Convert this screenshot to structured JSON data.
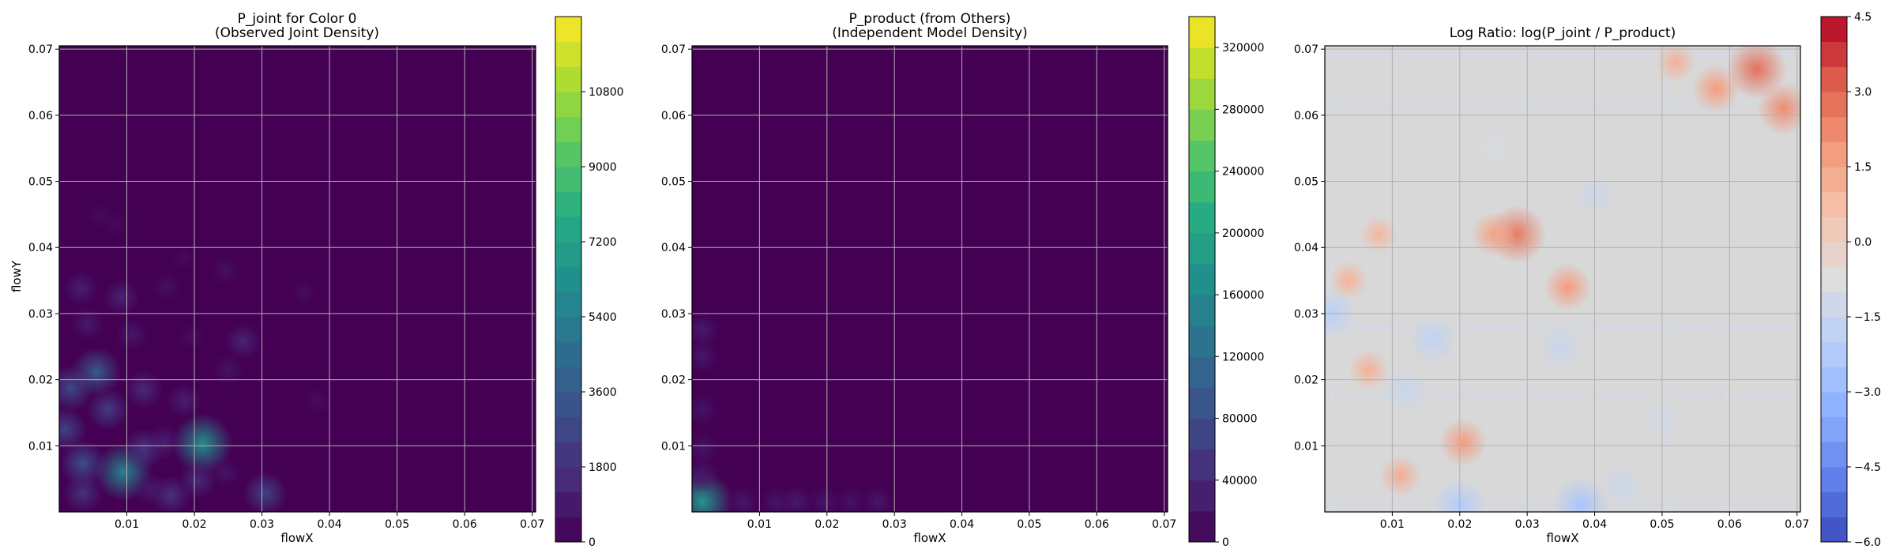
{
  "chart_data": [
    {
      "type": "heatmap",
      "title_line1": "P_joint for Color 0",
      "title_line2": "(Observed Joint Density)",
      "xlabel": "flowX",
      "ylabel": "flowY",
      "xlim": [
        0.0,
        0.0705
      ],
      "ylim": [
        0.0,
        0.0705
      ],
      "xticks": [
        0.01,
        0.02,
        0.03,
        0.04,
        0.05,
        0.06,
        0.07
      ],
      "xtick_labels": [
        "0.01",
        "0.02",
        "0.03",
        "0.04",
        "0.05",
        "0.06",
        "0.07"
      ],
      "yticks": [
        0.01,
        0.02,
        0.03,
        0.04,
        0.05,
        0.06,
        0.07
      ],
      "ytick_labels": [
        "0.01",
        "0.02",
        "0.03",
        "0.04",
        "0.05",
        "0.06",
        "0.07"
      ],
      "grid": true,
      "colormap": "viridis",
      "background_color": "#440154",
      "colorbar": {
        "min": 0,
        "max": 12600,
        "levels": 21,
        "ticks": [
          0,
          1800,
          3600,
          5400,
          7200,
          9000,
          10800
        ],
        "tick_labels": [
          "0",
          "1800",
          "3600",
          "5400",
          "7200",
          "9000",
          "10800"
        ]
      },
      "hotspots": [
        {
          "x": 0.0095,
          "y": 0.006,
          "value": 5600
        },
        {
          "x": 0.0212,
          "y": 0.0103,
          "value": 6200
        },
        {
          "x": 0.0055,
          "y": 0.0212,
          "value": 3600
        },
        {
          "x": 0.0035,
          "y": 0.0073,
          "value": 3000
        },
        {
          "x": 0.0017,
          "y": 0.0187,
          "value": 2800
        },
        {
          "x": 0.0008,
          "y": 0.0125,
          "value": 2500
        },
        {
          "x": 0.0305,
          "y": 0.0028,
          "value": 2500
        },
        {
          "x": 0.0072,
          "y": 0.0155,
          "value": 2200
        },
        {
          "x": 0.0125,
          "y": 0.0095,
          "value": 2000
        },
        {
          "x": 0.0165,
          "y": 0.0025,
          "value": 1800
        },
        {
          "x": 0.0035,
          "y": 0.0028,
          "value": 1800
        },
        {
          "x": 0.0125,
          "y": 0.0185,
          "value": 1500
        },
        {
          "x": 0.0272,
          "y": 0.0258,
          "value": 1300
        },
        {
          "x": 0.0092,
          "y": 0.0325,
          "value": 1200
        },
        {
          "x": 0.0032,
          "y": 0.0338,
          "value": 1100
        },
        {
          "x": 0.0185,
          "y": 0.0168,
          "value": 1100
        },
        {
          "x": 0.0155,
          "y": 0.0105,
          "value": 1100
        },
        {
          "x": 0.0108,
          "y": 0.0268,
          "value": 800
        },
        {
          "x": 0.025,
          "y": 0.0215,
          "value": 700
        },
        {
          "x": 0.0245,
          "y": 0.006,
          "value": 700
        },
        {
          "x": 0.0245,
          "y": 0.0365,
          "value": 500
        },
        {
          "x": 0.0362,
          "y": 0.0332,
          "value": 400
        },
        {
          "x": 0.0382,
          "y": 0.0168,
          "value": 400
        },
        {
          "x": 0.0158,
          "y": 0.034,
          "value": 500
        },
        {
          "x": 0.0042,
          "y": 0.0285,
          "value": 900
        },
        {
          "x": 0.006,
          "y": 0.0448,
          "value": 350
        },
        {
          "x": 0.0085,
          "y": 0.0435,
          "value": 300
        },
        {
          "x": 0.0185,
          "y": 0.0385,
          "value": 300
        },
        {
          "x": 0.0195,
          "y": 0.0265,
          "value": 400
        },
        {
          "x": 0.0205,
          "y": 0.0048,
          "value": 1500
        },
        {
          "x": 0.0135,
          "y": 0.0035,
          "value": 900
        }
      ]
    },
    {
      "type": "heatmap",
      "title_line1": "P_product (from Others)",
      "title_line2": "(Independent Model Density)",
      "xlabel": "flowX",
      "ylabel": "",
      "xlim": [
        0.0,
        0.0705
      ],
      "ylim": [
        0.0,
        0.0705
      ],
      "xticks": [
        0.01,
        0.02,
        0.03,
        0.04,
        0.05,
        0.06,
        0.07
      ],
      "xtick_labels": [
        "0.01",
        "0.02",
        "0.03",
        "0.04",
        "0.05",
        "0.06",
        "0.07"
      ],
      "yticks": [
        0.01,
        0.02,
        0.03,
        0.04,
        0.05,
        0.06,
        0.07
      ],
      "ytick_labels": [
        "0.01",
        "0.02",
        "0.03",
        "0.04",
        "0.05",
        "0.06",
        "0.07"
      ],
      "grid": true,
      "colormap": "viridis",
      "background_color": "#440154",
      "colorbar": {
        "min": 0,
        "max": 340000,
        "levels": 17,
        "ticks": [
          0,
          40000,
          80000,
          120000,
          160000,
          200000,
          240000,
          280000,
          320000
        ],
        "tick_labels": [
          "0",
          "40000",
          "80000",
          "120000",
          "160000",
          "200000",
          "240000",
          "280000",
          "320000"
        ]
      },
      "hotspots": [
        {
          "x": 0.0015,
          "y": 0.0015,
          "value": 180000
        },
        {
          "x": 0.0015,
          "y": 0.0055,
          "value": 25000
        },
        {
          "x": 0.0015,
          "y": 0.0095,
          "value": 20000
        },
        {
          "x": 0.0015,
          "y": 0.0155,
          "value": 20000
        },
        {
          "x": 0.0015,
          "y": 0.0235,
          "value": 22000
        },
        {
          "x": 0.0015,
          "y": 0.0275,
          "value": 25000
        },
        {
          "x": 0.0075,
          "y": 0.0015,
          "value": 22000
        },
        {
          "x": 0.0125,
          "y": 0.0015,
          "value": 20000
        },
        {
          "x": 0.0155,
          "y": 0.0015,
          "value": 25000
        },
        {
          "x": 0.0195,
          "y": 0.0015,
          "value": 20000
        },
        {
          "x": 0.0235,
          "y": 0.0015,
          "value": 18000
        },
        {
          "x": 0.0275,
          "y": 0.0015,
          "value": 22000
        }
      ]
    },
    {
      "type": "heatmap",
      "title_line1": "Log Ratio: log(P_joint / P_product)",
      "title_line2": "",
      "xlabel": "flowX",
      "ylabel": "",
      "xlim": [
        0.0,
        0.0705
      ],
      "ylim": [
        0.0,
        0.0705
      ],
      "xticks": [
        0.01,
        0.02,
        0.03,
        0.04,
        0.05,
        0.06,
        0.07
      ],
      "xtick_labels": [
        "0.01",
        "0.02",
        "0.03",
        "0.04",
        "0.05",
        "0.06",
        "0.07"
      ],
      "yticks": [
        0.01,
        0.02,
        0.03,
        0.04,
        0.05,
        0.06,
        0.07
      ],
      "ytick_labels": [
        "0.01",
        "0.02",
        "0.03",
        "0.04",
        "0.05",
        "0.06",
        "0.07"
      ],
      "grid": true,
      "colormap": "coolwarm",
      "background_color": "#d8d8d8",
      "colorbar": {
        "min": -6.0,
        "max": 4.5,
        "levels": 21,
        "ticks": [
          -6.0,
          -4.5,
          -3.0,
          -1.5,
          0.0,
          1.5,
          3.0,
          4.5
        ],
        "tick_labels": [
          "−6.0",
          "−4.5",
          "−3.0",
          "−1.5",
          "0.0",
          "1.5",
          "3.0",
          "4.5"
        ]
      },
      "hotspots": [
        {
          "x": 0.064,
          "y": 0.067,
          "value": 2.8
        },
        {
          "x": 0.058,
          "y": 0.064,
          "value": 1.8
        },
        {
          "x": 0.052,
          "y": 0.068,
          "value": 1.2
        },
        {
          "x": 0.068,
          "y": 0.061,
          "value": 2.2
        },
        {
          "x": 0.0285,
          "y": 0.042,
          "value": 2.6
        },
        {
          "x": 0.025,
          "y": 0.042,
          "value": 1.6
        },
        {
          "x": 0.036,
          "y": 0.034,
          "value": 1.8
        },
        {
          "x": 0.0205,
          "y": 0.0105,
          "value": 1.8
        },
        {
          "x": 0.0112,
          "y": 0.0055,
          "value": 1.3
        },
        {
          "x": 0.0065,
          "y": 0.0215,
          "value": 1.2
        },
        {
          "x": 0.0035,
          "y": 0.035,
          "value": 1.1
        },
        {
          "x": 0.008,
          "y": 0.042,
          "value": 1.0
        },
        {
          "x": 0.012,
          "y": 0.0185,
          "value": -1.5
        },
        {
          "x": 0.016,
          "y": 0.026,
          "value": -1.8
        },
        {
          "x": 0.035,
          "y": 0.025,
          "value": -1.5
        },
        {
          "x": 0.038,
          "y": 0.001,
          "value": -2.5
        },
        {
          "x": 0.02,
          "y": 0.001,
          "value": -2.2
        },
        {
          "x": 0.001,
          "y": 0.03,
          "value": -2.0
        },
        {
          "x": 0.04,
          "y": 0.048,
          "value": -1.4
        },
        {
          "x": 0.05,
          "y": 0.014,
          "value": -1.2
        },
        {
          "x": 0.025,
          "y": 0.055,
          "value": -1.0
        },
        {
          "x": 0.044,
          "y": 0.004,
          "value": -1.4
        }
      ]
    }
  ]
}
